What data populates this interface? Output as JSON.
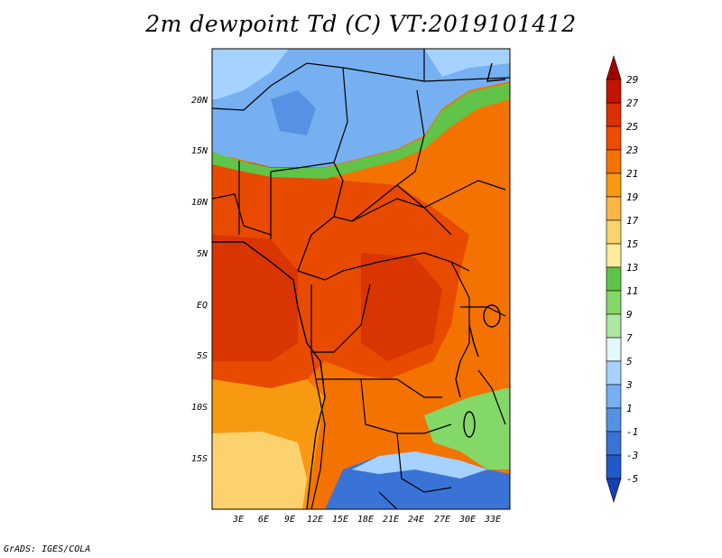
{
  "title": "2m dewpoint Td (C) VT:2019101412",
  "credit": "GrADS: IGES/COLA",
  "map": {
    "lat_labels": [
      "20N",
      "15N",
      "10N",
      "5N",
      "EQ",
      "5S",
      "10S",
      "15S"
    ],
    "lon_labels": [
      "3E",
      "6E",
      "9E",
      "12E",
      "15E",
      "18E",
      "21E",
      "24E",
      "27E",
      "30E",
      "33E"
    ],
    "lat_range": [
      -20,
      24
    ],
    "lon_range": [
      0,
      34
    ]
  },
  "colorbar": {
    "levels": [
      "29",
      "27",
      "25",
      "23",
      "21",
      "19",
      "17",
      "15",
      "13",
      "11",
      "9",
      "7",
      "5",
      "3",
      "1",
      "-1",
      "-3",
      "-5"
    ],
    "colors": [
      "#a50000",
      "#c41400",
      "#dd2f00",
      "#ec4d00",
      "#f37200",
      "#f79a12",
      "#fbb646",
      "#fcd26e",
      "#fdec9c",
      "#5fc449",
      "#84d868",
      "#ade8a0",
      "#e4f7ff",
      "#a6d2ff",
      "#76b0f0",
      "#5691e3",
      "#3a73d6",
      "#2358c8",
      "#1740b0"
    ]
  },
  "regions": {
    "land_hot": "#e84a00",
    "land_warm": "#f37200",
    "land_mild": "#f79a12",
    "land_cool": "#fcd26e",
    "sahel_green": "#5fc449",
    "sahara_blue": "#76b0f0",
    "sahara_light": "#a6d2ff",
    "south_blue": "#3a73d6",
    "east_green": "#84d868"
  }
}
